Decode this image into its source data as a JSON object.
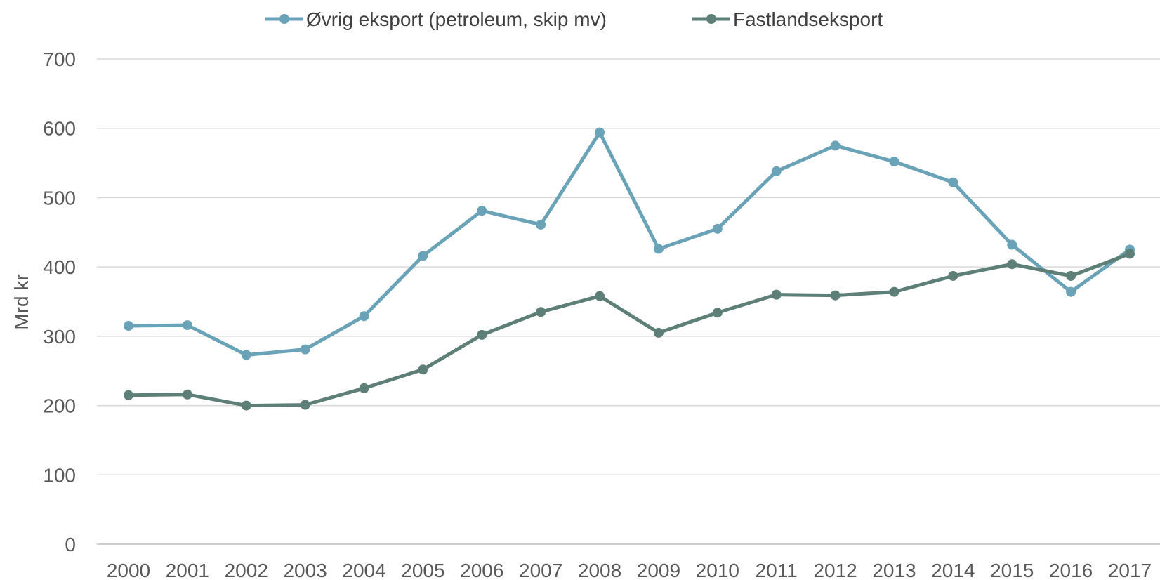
{
  "chart_data": {
    "type": "line",
    "ylabel": "Mrd kr",
    "ylim": [
      0,
      700
    ],
    "yticks": [
      0,
      100,
      200,
      300,
      400,
      500,
      600,
      700
    ],
    "grid": true,
    "legend_position": "top",
    "categories": [
      "2000",
      "2001",
      "2002",
      "2003",
      "2004",
      "2005",
      "2006",
      "2007",
      "2008",
      "2009",
      "2010",
      "2011",
      "2012",
      "2013",
      "2014",
      "2015",
      "2016",
      "2017"
    ],
    "series": [
      {
        "name": "Øvrig eksport (petroleum, skip mv)",
        "color": "#6AA3B8",
        "values": [
          315,
          316,
          273,
          281,
          329,
          416,
          481,
          461,
          594,
          426,
          455,
          538,
          575,
          552,
          522,
          432,
          364,
          425
        ]
      },
      {
        "name": "Fastlandseksport",
        "color": "#5E7F77",
        "values": [
          215,
          216,
          200,
          201,
          225,
          252,
          302,
          335,
          358,
          305,
          334,
          360,
          359,
          364,
          387,
          404,
          387,
          419
        ]
      }
    ]
  }
}
